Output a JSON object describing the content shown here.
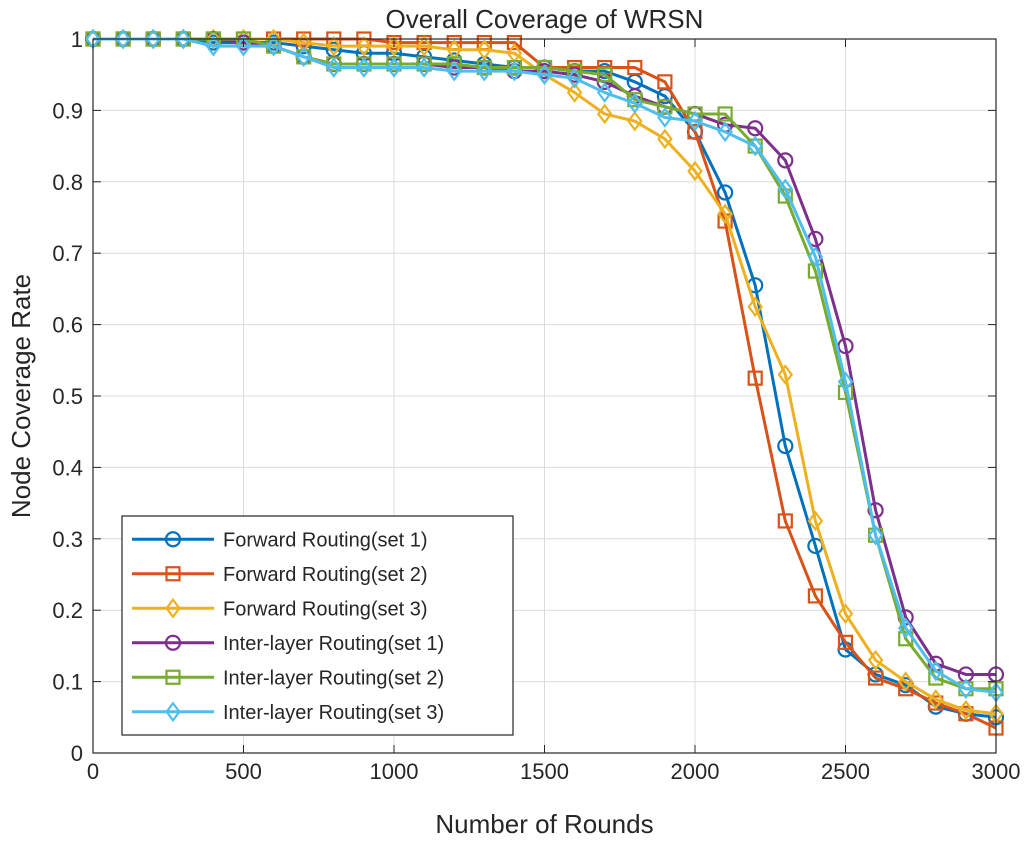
{
  "chart_data": {
    "type": "line",
    "title": "Overall Coverage of WRSN",
    "xlabel": "Number of Rounds",
    "ylabel": "Node Coverage Rate",
    "xlim": [
      0,
      3000
    ],
    "ylim": [
      0,
      1
    ],
    "xticks": [
      0,
      500,
      1000,
      1500,
      2000,
      2500,
      3000
    ],
    "yticks": [
      0,
      0.1,
      0.2,
      0.3,
      0.4,
      0.5,
      0.6,
      0.7,
      0.8,
      0.9,
      1
    ],
    "ytick_labels": [
      "0",
      "0.1",
      "0.2",
      "0.3",
      "0.4",
      "0.5",
      "0.6",
      "0.7",
      "0.8",
      "0.9",
      "1"
    ],
    "grid": true,
    "legend_position": "bottom-left",
    "series": [
      {
        "name": "Forward Routing(set 1)",
        "color": "#0072BD",
        "marker": "circle",
        "x": [
          0,
          100,
          200,
          300,
          400,
          500,
          600,
          700,
          800,
          900,
          1000,
          1100,
          1200,
          1300,
          1400,
          1500,
          1600,
          1700,
          1800,
          1900,
          2000,
          2100,
          2200,
          2300,
          2400,
          2500,
          2600,
          2700,
          2800,
          2900,
          3000
        ],
        "y": [
          1,
          1,
          1,
          1,
          0.995,
          0.995,
          0.995,
          0.99,
          0.985,
          0.98,
          0.98,
          0.975,
          0.97,
          0.965,
          0.96,
          0.96,
          0.955,
          0.955,
          0.94,
          0.92,
          0.87,
          0.785,
          0.655,
          0.43,
          0.29,
          0.145,
          0.11,
          0.095,
          0.065,
          0.055,
          0.05
        ]
      },
      {
        "name": "Forward Routing(set 2)",
        "color": "#D95319",
        "marker": "square",
        "x": [
          0,
          100,
          200,
          300,
          400,
          500,
          600,
          700,
          800,
          900,
          1000,
          1100,
          1200,
          1300,
          1400,
          1500,
          1600,
          1700,
          1800,
          1900,
          2000,
          2100,
          2200,
          2300,
          2400,
          2500,
          2600,
          2700,
          2800,
          2900,
          3000
        ],
        "y": [
          1,
          1,
          1,
          1,
          1,
          1,
          1,
          1,
          1,
          1,
          0.995,
          0.995,
          0.995,
          0.995,
          0.995,
          0.96,
          0.96,
          0.96,
          0.96,
          0.94,
          0.87,
          0.745,
          0.525,
          0.325,
          0.22,
          0.155,
          0.105,
          0.09,
          0.07,
          0.055,
          0.035
        ]
      },
      {
        "name": "Forward Routing(set 3)",
        "color": "#EDB120",
        "marker": "diamond",
        "x": [
          0,
          100,
          200,
          300,
          400,
          500,
          600,
          700,
          800,
          900,
          1000,
          1100,
          1200,
          1300,
          1400,
          1500,
          1600,
          1700,
          1800,
          1900,
          2000,
          2100,
          2200,
          2300,
          2400,
          2500,
          2600,
          2700,
          2800,
          2900,
          3000
        ],
        "y": [
          1,
          1,
          1,
          1,
          1,
          1,
          1,
          0.995,
          0.99,
          0.99,
          0.99,
          0.99,
          0.985,
          0.985,
          0.98,
          0.95,
          0.925,
          0.895,
          0.885,
          0.86,
          0.815,
          0.755,
          0.625,
          0.53,
          0.325,
          0.195,
          0.13,
          0.1,
          0.075,
          0.06,
          0.055
        ]
      },
      {
        "name": "Inter-layer Routing(set 1)",
        "color": "#7E2F8E",
        "marker": "circle",
        "x": [
          0,
          100,
          200,
          300,
          400,
          500,
          600,
          700,
          800,
          900,
          1000,
          1100,
          1200,
          1300,
          1400,
          1500,
          1600,
          1700,
          1800,
          1900,
          2000,
          2100,
          2200,
          2300,
          2400,
          2500,
          2600,
          2700,
          2800,
          2900,
          3000
        ],
        "y": [
          1,
          1,
          1,
          1,
          1,
          0.995,
          0.99,
          0.975,
          0.965,
          0.965,
          0.965,
          0.965,
          0.96,
          0.96,
          0.955,
          0.955,
          0.95,
          0.94,
          0.92,
          0.905,
          0.895,
          0.88,
          0.875,
          0.83,
          0.72,
          0.57,
          0.34,
          0.19,
          0.125,
          0.11,
          0.11
        ]
      },
      {
        "name": "Inter-layer Routing(set 2)",
        "color": "#77AC30",
        "marker": "square",
        "x": [
          0,
          100,
          200,
          300,
          400,
          500,
          600,
          700,
          800,
          900,
          1000,
          1100,
          1200,
          1300,
          1400,
          1500,
          1600,
          1700,
          1800,
          1900,
          2000,
          2100,
          2200,
          2300,
          2400,
          2500,
          2600,
          2700,
          2800,
          2900,
          3000
        ],
        "y": [
          1,
          1,
          1,
          1,
          1,
          1,
          0.99,
          0.975,
          0.965,
          0.965,
          0.965,
          0.965,
          0.965,
          0.96,
          0.96,
          0.96,
          0.955,
          0.95,
          0.915,
          0.905,
          0.895,
          0.895,
          0.85,
          0.78,
          0.675,
          0.505,
          0.305,
          0.16,
          0.105,
          0.09,
          0.09
        ]
      },
      {
        "name": "Inter-layer Routing(set 3)",
        "color": "#4DBEEE",
        "marker": "diamond",
        "x": [
          0,
          100,
          200,
          300,
          400,
          500,
          600,
          700,
          800,
          900,
          1000,
          1100,
          1200,
          1300,
          1400,
          1500,
          1600,
          1700,
          1800,
          1900,
          2000,
          2100,
          2200,
          2300,
          2400,
          2500,
          2600,
          2700,
          2800,
          2900,
          3000
        ],
        "y": [
          1,
          1,
          1,
          1,
          0.99,
          0.99,
          0.99,
          0.975,
          0.96,
          0.96,
          0.96,
          0.96,
          0.955,
          0.955,
          0.955,
          0.95,
          0.945,
          0.925,
          0.91,
          0.89,
          0.885,
          0.87,
          0.85,
          0.79,
          0.695,
          0.52,
          0.305,
          0.175,
          0.115,
          0.09,
          0.085
        ]
      }
    ]
  }
}
